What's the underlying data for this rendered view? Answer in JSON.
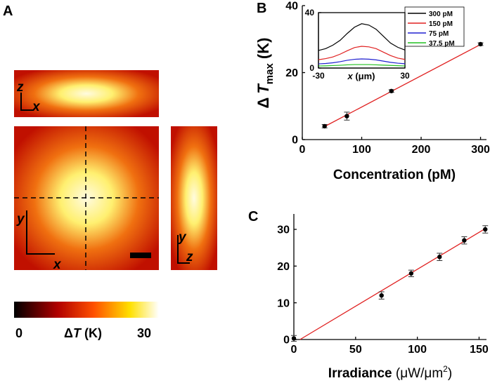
{
  "chart_data": [
    {
      "type": "heatmap",
      "label": "A",
      "views": [
        [
          "z",
          "x"
        ],
        [
          "y",
          "x"
        ],
        [
          "y",
          "z"
        ]
      ],
      "clim": [
        0,
        30
      ],
      "cticks": [
        0,
        30
      ],
      "colorbar_label": [
        "Δ",
        "T",
        " (K)"
      ]
    },
    {
      "type": "scatter",
      "label": "B",
      "xlabel": "Concentration (pM)",
      "ylabel": [
        "Δ",
        "T",
        "max",
        " (K)"
      ],
      "x": [
        37.5,
        75,
        150,
        300
      ],
      "values": [
        4,
        7,
        14.5,
        28.5
      ],
      "errors": [
        0.5,
        1.2,
        0.4,
        0.4
      ],
      "color": "#000000",
      "fit": {
        "x": [
          37.5,
          300
        ],
        "values": [
          3.9,
          28.4
        ],
        "color": "#e02020"
      },
      "xlim": [
        0,
        310
      ],
      "ylim": [
        0,
        40
      ],
      "xticks": [
        0,
        100,
        200,
        300
      ],
      "yticks": [
        0,
        20,
        40
      ]
    },
    {
      "type": "line",
      "xlabel": [
        "x",
        " (μm)"
      ],
      "x": [
        -30,
        -25,
        -20,
        -15,
        -10,
        -5,
        0,
        5,
        10,
        15,
        20,
        25,
        30
      ],
      "series": [
        {
          "name": "300 pM",
          "color": "#000000",
          "values": [
            12.7,
            14,
            16.5,
            20,
            25,
            29.5,
            32,
            31,
            28,
            23,
            18,
            15,
            13
          ]
        },
        {
          "name": "150 pM",
          "color": "#e02020",
          "values": [
            6,
            6.8,
            8,
            10,
            12.5,
            14.8,
            15.7,
            15.3,
            14,
            11.5,
            9,
            7.2,
            6.2
          ]
        },
        {
          "name": "75  pM",
          "color": "#2020d0",
          "values": [
            3,
            3.3,
            3.8,
            4.6,
            5.6,
            6.3,
            6.6,
            6.4,
            5.9,
            5,
            4.1,
            3.5,
            3.1
          ]
        },
        {
          "name": "37.5 pM",
          "color": "#20c020",
          "values": [
            1.5,
            1.6,
            1.8,
            2,
            2.3,
            2.5,
            2.5,
            2.5,
            2.3,
            2.1,
            1.9,
            1.7,
            1.5
          ]
        }
      ],
      "xlim": [
        -30,
        30
      ],
      "ylim": [
        0,
        40
      ],
      "xticks": [
        -30,
        30
      ],
      "yticks": [
        0,
        40
      ]
    },
    {
      "type": "scatter",
      "label": "C",
      "xlabel": [
        "Irradiance ",
        "(μW/μm",
        "2",
        ")"
      ],
      "x": [
        0,
        71,
        95,
        118,
        138,
        155
      ],
      "values": [
        0.3,
        12,
        18,
        22.5,
        27,
        30
      ],
      "errors": [
        0.8,
        1,
        0.9,
        1,
        1,
        1
      ],
      "color": "#000000",
      "fit": {
        "x": [
          5,
          155
        ],
        "values": [
          0,
          30.2
        ],
        "color": "#e02020"
      },
      "xlim": [
        0,
        156
      ],
      "ylim": [
        0,
        34.2
      ],
      "xticks": [
        0,
        50,
        100,
        150
      ],
      "yticks": [
        0,
        10,
        20,
        30
      ]
    }
  ]
}
